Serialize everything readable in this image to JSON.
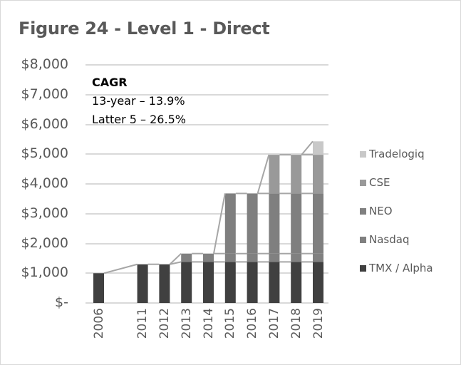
{
  "title": "Figure 24 - Level 1 - Direct",
  "annotation": {
    "heading": "CAGR",
    "line1": "13-year – 13.9%",
    "line2": "Latter 5 – 26.5%"
  },
  "y_ticks": [
    "$8,000",
    "$7,000",
    "$6,000",
    "$5,000",
    "$4,000",
    "$3,000",
    "$2,000",
    "$1,000",
    "$-"
  ],
  "colors": {
    "TMX / Alpha": "#404040",
    "Nasdaq": "#808080",
    "NEO": "#7f7f7f",
    "CSE": "#999999",
    "Tradelogiq": "#c8c8c8",
    "grid": "#d9d9d9",
    "series_line": "#a6a6a6"
  },
  "legend": [
    {
      "label": "Tradelogiq",
      "color": "#c8c8c8"
    },
    {
      "label": "CSE",
      "color": "#999999"
    },
    {
      "label": "NEO",
      "color": "#808080"
    },
    {
      "label": "Nasdaq",
      "color": "#808080"
    },
    {
      "label": "TMX / Alpha",
      "color": "#404040"
    }
  ],
  "chart_data": {
    "type": "bar",
    "stacked": true,
    "title": "Figure 24 - Level 1 - Direct",
    "xlabel": "",
    "ylabel": "",
    "ylim": [
      0,
      8000
    ],
    "categories": [
      "2006",
      "",
      "2011",
      "2012",
      "2013",
      "2014",
      "2015",
      "2016",
      "2017",
      "2018",
      "2019"
    ],
    "series": [
      {
        "name": "TMX / Alpha",
        "values": [
          1000,
          0,
          1300,
          1300,
          1380,
          1380,
          1380,
          1380,
          1380,
          1380,
          1380
        ]
      },
      {
        "name": "Nasdaq",
        "values": [
          0,
          0,
          0,
          0,
          280,
          280,
          280,
          280,
          280,
          280,
          280
        ]
      },
      {
        "name": "NEO",
        "values": [
          0,
          0,
          0,
          0,
          0,
          0,
          2020,
          2020,
          2020,
          2020,
          2020
        ]
      },
      {
        "name": "CSE",
        "values": [
          0,
          0,
          0,
          0,
          0,
          0,
          0,
          0,
          1300,
          1300,
          1300
        ]
      },
      {
        "name": "Tradelogiq",
        "values": [
          0,
          0,
          0,
          0,
          0,
          0,
          0,
          0,
          0,
          0,
          450
        ]
      }
    ],
    "annotations": [
      "CAGR",
      "13-year – 13.9%",
      "Latter 5 – 26.5%"
    ],
    "grid": true,
    "legend_position": "right"
  }
}
